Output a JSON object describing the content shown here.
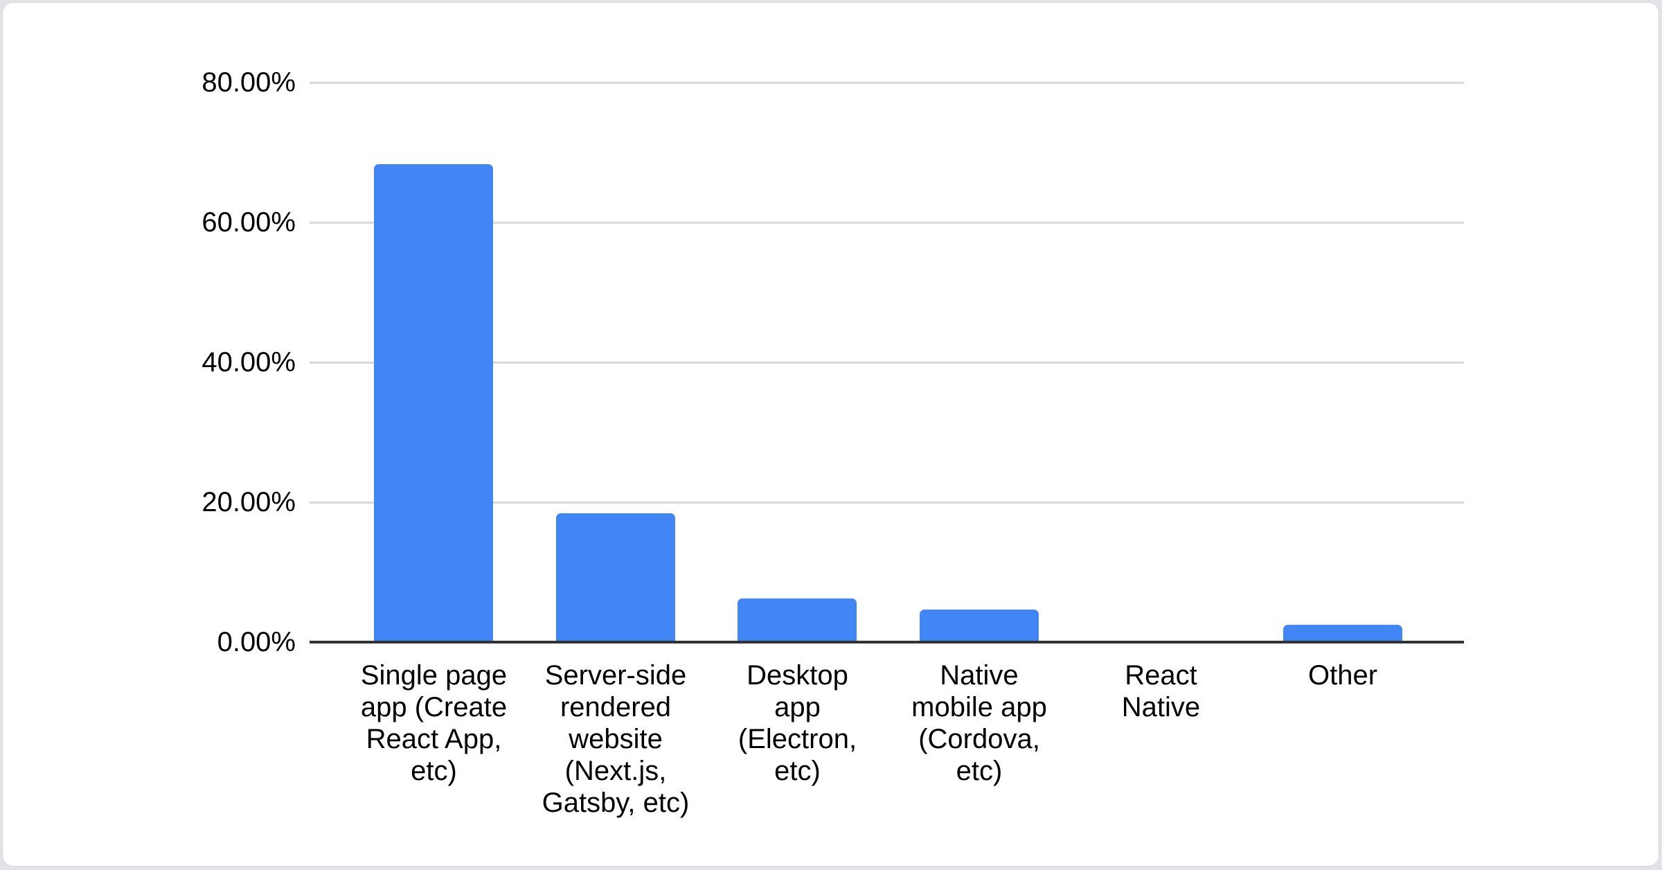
{
  "page": {
    "background_color": "#e2e3e6",
    "card_background": "#ffffff",
    "card_border_color": "#d6d8db"
  },
  "chart_data": {
    "type": "bar",
    "title": "",
    "xlabel": "",
    "ylabel": "",
    "categories": [
      "Single page app (Create React App, etc)",
      "Server-side rendered website (Next.js, Gatsby, etc)",
      "Desktop app (Electron, etc)",
      "Native mobile app (Cordova, etc)",
      "React Native",
      "Other"
    ],
    "category_lines": [
      [
        "Single page",
        "app (Create",
        "React App,",
        "etc)"
      ],
      [
        "Server-side",
        "rendered",
        "website",
        "(Next.js,",
        "Gatsby, etc)"
      ],
      [
        "Desktop",
        "app",
        "(Electron,",
        "etc)"
      ],
      [
        "Native",
        "mobile app",
        "(Cordova,",
        "etc)"
      ],
      [
        "React",
        "Native"
      ],
      [
        "Other"
      ]
    ],
    "values": [
      68.3,
      18.4,
      6.2,
      4.7,
      0,
      2.5
    ],
    "unit": "%",
    "ylim": [
      0,
      80
    ],
    "yticks": [
      {
        "value": 80,
        "label": "80.00%"
      },
      {
        "value": 60,
        "label": "60.00%"
      },
      {
        "value": 40,
        "label": "40.00%"
      },
      {
        "value": 20,
        "label": "20.00%"
      },
      {
        "value": 0,
        "label": "0.00%"
      }
    ],
    "grid": true,
    "legend_position": "none",
    "bar_color": "#4285f4",
    "gridline_color": "#d9d9d9",
    "axis_color": "#333333",
    "text_color": "#000000"
  }
}
